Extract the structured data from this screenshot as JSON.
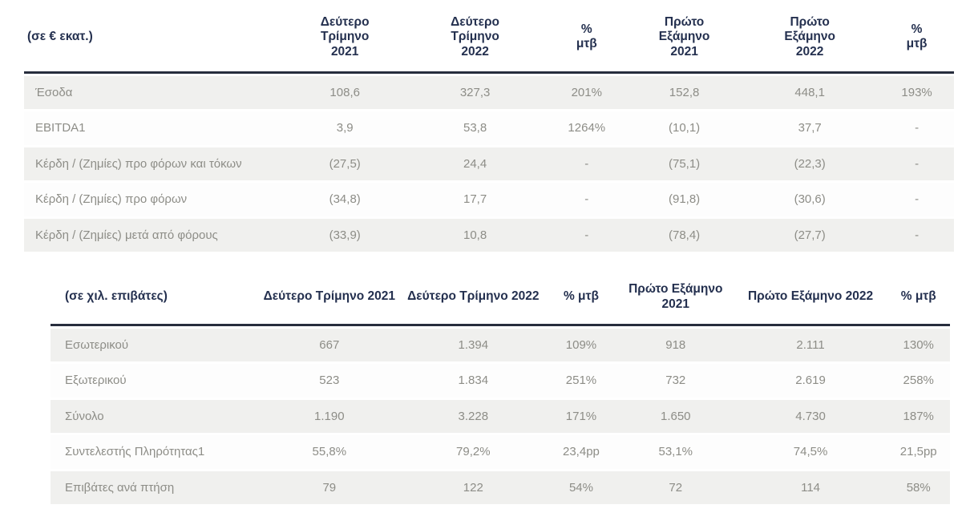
{
  "colors": {
    "header_text": "#24304f",
    "body_text": "#8d8d87",
    "header_rule": "#272d3d",
    "row_stripe": "#f0f0ee"
  },
  "table1": {
    "unit_label": "(σε € εκατ.)",
    "columns": [
      "Δεύτερο Τρίμηνο 2021",
      "Δεύτερο Τρίμηνο 2022",
      "% μτβ",
      "Πρώτο Εξάμηνο 2021",
      "Πρώτο Εξάμηνο 2022",
      "% μτβ"
    ],
    "rows": [
      {
        "label": "Έσοδα",
        "values": [
          "108,6",
          "327,3",
          "201%",
          "152,8",
          "448,1",
          "193%"
        ]
      },
      {
        "label": "EBITDA1",
        "values": [
          "3,9",
          "53,8",
          "1264%",
          "(10,1)",
          "37,7",
          "-"
        ]
      },
      {
        "label": "Κέρδη / (Ζημίες) προ φόρων και τόκων",
        "values": [
          "(27,5)",
          "24,4",
          "-",
          "(75,1)",
          "(22,3)",
          "-"
        ]
      },
      {
        "label": "Κέρδη / (Ζημίες) προ φόρων",
        "values": [
          "(34,8)",
          "17,7",
          "-",
          "(91,8)",
          "(30,6)",
          "-"
        ]
      },
      {
        "label": "Κέρδη / (Ζημίες) μετά από φόρους",
        "values": [
          "(33,9)",
          "10,8",
          "-",
          "(78,4)",
          "(27,7)",
          "-"
        ]
      }
    ]
  },
  "table2": {
    "unit_label": "(σε χιλ. επιβάτες)",
    "columns": [
      "Δεύτερο Τρίμηνο 2021",
      "Δεύτερο Τρίμηνο 2022",
      "% μτβ",
      "Πρώτο Εξάμηνο 2021",
      "Πρώτο Εξάμηνο 2022",
      "% μτβ"
    ],
    "rows": [
      {
        "label": "Εσωτερικού",
        "values": [
          "667",
          "1.394",
          "109%",
          "918",
          "2.111",
          "130%"
        ]
      },
      {
        "label": "Εξωτερικού",
        "values": [
          "523",
          "1.834",
          "251%",
          "732",
          "2.619",
          "258%"
        ]
      },
      {
        "label": "Σύνολο",
        "values": [
          "1.190",
          "3.228",
          "171%",
          "1.650",
          "4.730",
          "187%"
        ]
      },
      {
        "label": "Συντελεστής Πληρότητας1",
        "values": [
          "55,8%",
          "79,2%",
          "23,4pp",
          "53,1%",
          "74,5%",
          "21,5pp"
        ]
      },
      {
        "label": "Επιβάτες ανά πτήση",
        "values": [
          "79",
          "122",
          "54%",
          "72",
          "114",
          "58%"
        ]
      }
    ]
  }
}
